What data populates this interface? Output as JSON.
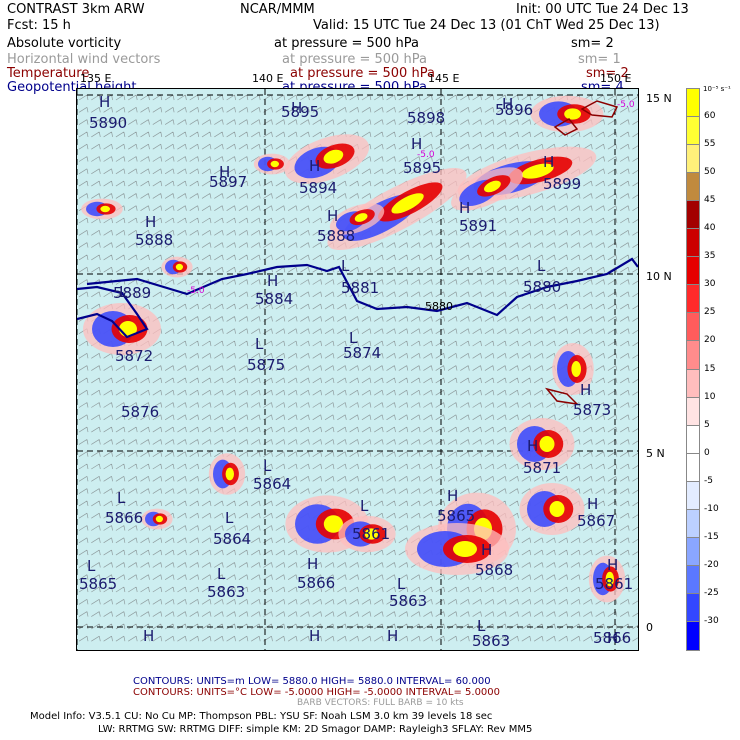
{
  "header": {
    "model": "CONTRAST  3km ARW",
    "org": "NCAR/MMM",
    "init": "Init: 00 UTC Tue 24 Dec 13",
    "fcst": "Fcst:    15 h",
    "valid": "Valid: 15 UTC Tue 24 Dec 13 (01 ChT Wed 25 Dec 13)"
  },
  "fields": [
    {
      "name": "Absolute vorticity",
      "pressure": "at pressure =  500 hPa",
      "sm": "sm= 2",
      "color": "#000000"
    },
    {
      "name": "Horizontal wind vectors",
      "pressure": "at pressure =  500 hPa",
      "sm": "sm= 1",
      "color": "#9a9a9a"
    },
    {
      "name": "Temperature",
      "pressure": "at pressure =  500 hPa",
      "sm": "sm= 2",
      "color": "#8b0000"
    },
    {
      "name": "Geopotential height",
      "pressure": "at pressure =  500 hPa",
      "sm": "sm= 4",
      "color": "#00008b"
    }
  ],
  "map": {
    "lon_labels": [
      "135 E",
      "140 E",
      "145 E",
      "150 E"
    ],
    "lat_labels": [
      "15 N",
      "10 N",
      "5 N",
      "0"
    ],
    "height_labels": [
      {
        "t": "H"
      },
      {
        "t": "5890"
      },
      {
        "t": "H"
      },
      {
        "t": "5895"
      },
      {
        "t": "5898"
      },
      {
        "t": "H"
      },
      {
        "t": "5896"
      },
      {
        "t": "H"
      },
      {
        "t": "5895"
      },
      {
        "t": "H"
      },
      {
        "t": "5897"
      },
      {
        "t": "H"
      },
      {
        "t": "5894"
      },
      {
        "t": "H"
      },
      {
        "t": "5899"
      },
      {
        "t": "H"
      },
      {
        "t": "5888"
      },
      {
        "t": "H"
      },
      {
        "t": "5888"
      },
      {
        "t": "H"
      },
      {
        "t": "5891"
      },
      {
        "t": "L"
      },
      {
        "t": "5889"
      },
      {
        "t": "H"
      },
      {
        "t": "5884"
      },
      {
        "t": "L"
      },
      {
        "t": "5881"
      },
      {
        "t": "L"
      },
      {
        "t": "5880"
      },
      {
        "t": "5880"
      },
      {
        "t": "5872"
      },
      {
        "t": "L"
      },
      {
        "t": "5875"
      },
      {
        "t": "L"
      },
      {
        "t": "5874"
      },
      {
        "t": "H"
      },
      {
        "t": "5873"
      },
      {
        "t": "5876"
      },
      {
        "t": "L"
      },
      {
        "t": "5864"
      },
      {
        "t": "H"
      },
      {
        "t": "5871"
      },
      {
        "t": "L"
      },
      {
        "t": "5866"
      },
      {
        "t": "L"
      },
      {
        "t": "5864"
      },
      {
        "t": "L"
      },
      {
        "t": "5861"
      },
      {
        "t": "H"
      },
      {
        "t": "5865"
      },
      {
        "t": "H"
      },
      {
        "t": "5867"
      },
      {
        "t": "H"
      },
      {
        "t": "5868"
      },
      {
        "t": "L"
      },
      {
        "t": "5865"
      },
      {
        "t": "L"
      },
      {
        "t": "5863"
      },
      {
        "t": "H"
      },
      {
        "t": "5866"
      },
      {
        "t": "L"
      },
      {
        "t": "5863"
      },
      {
        "t": "H"
      },
      {
        "t": "5861"
      },
      {
        "t": "H"
      },
      {
        "t": "L"
      },
      {
        "t": "5863"
      },
      {
        "t": "5866"
      },
      {
        "t": "H"
      },
      {
        "t": "H"
      },
      {
        "t": "H"
      }
    ],
    "magenta_labels": [
      "-5.0",
      "-5.0",
      "-5.0"
    ]
  },
  "colorbar": {
    "units": "10⁻⁵ s⁻¹",
    "entries": [
      {
        "value": "60",
        "color": "#ffff00"
      },
      {
        "value": "55",
        "color": "#ffff33"
      },
      {
        "value": "50",
        "color": "#fff07a"
      },
      {
        "value": "45",
        "color": "#c08a3e"
      },
      {
        "value": "40",
        "color": "#a30000"
      },
      {
        "value": "35",
        "color": "#cc0000"
      },
      {
        "value": "30",
        "color": "#e60000"
      },
      {
        "value": "25",
        "color": "#ff2a2a"
      },
      {
        "value": "20",
        "color": "#ff5c5c"
      },
      {
        "value": "15",
        "color": "#ff8c8c"
      },
      {
        "value": "10",
        "color": "#ffbdbd"
      },
      {
        "value": "5",
        "color": "#ffe3e3"
      },
      {
        "value": "0",
        "color": "#ffffff"
      },
      {
        "value": "-5",
        "color": "#ffffff"
      },
      {
        "value": "-10",
        "color": "#e3ecff"
      },
      {
        "value": "-15",
        "color": "#bcd0ff"
      },
      {
        "value": "-20",
        "color": "#8aa6ff"
      },
      {
        "value": "-25",
        "color": "#5b78ff"
      },
      {
        "value": "-30",
        "color": "#3347ff"
      },
      {
        "value": "",
        "color": "#0000ff"
      }
    ]
  },
  "footer": {
    "contours1": "CONTOURS:  UNITS=m   LOW=   5880.0          HIGH=  5880.0          INTERVAL=   60.000",
    "contours2": "CONTOURS:  UNITS=°C   LOW= -5.0000        HIGH= -5.0000          INTERVAL=    5.0000",
    "barbs": "BARB VECTORS:  FULL BARB = 10 kts",
    "model_info": "Model Info: V3.5.1      CU: No Cu      MP: Thompson      PBL: YSU         SF: Noah LSM      3.0 km   39 levels    18 sec",
    "model_info2": "LW: RRTMG     SW: RRTMG    DIFF: simple KM: 2D Smagor DAMP: Rayleigh3   SFLAY: Rev MM5"
  }
}
